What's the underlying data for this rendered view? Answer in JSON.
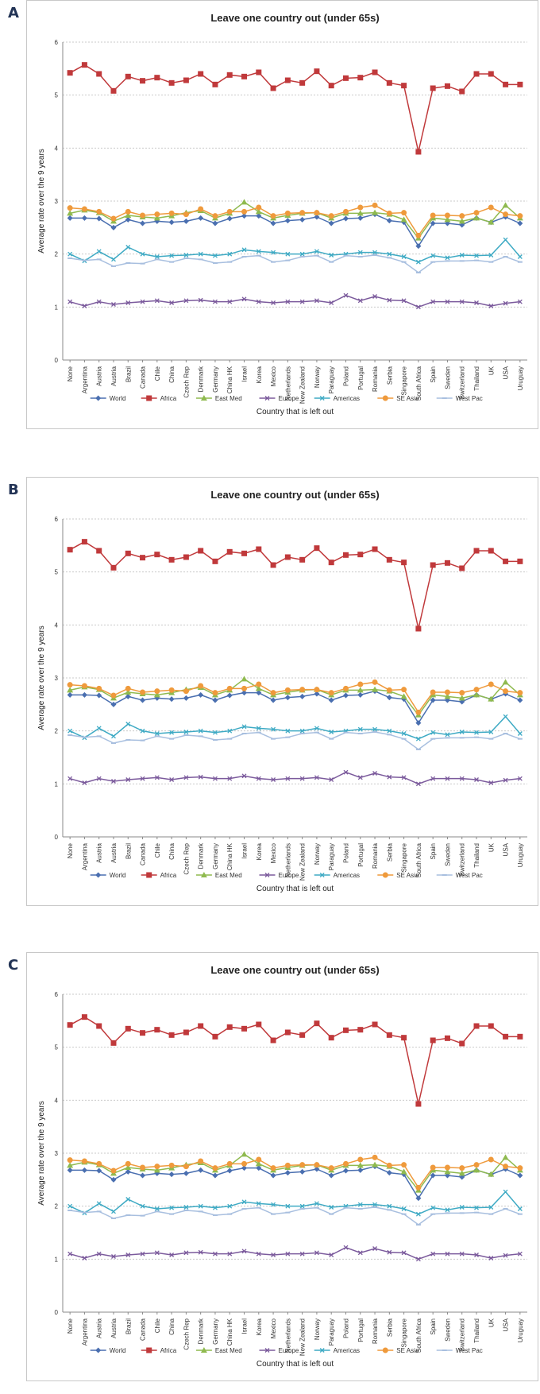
{
  "panels": [
    {
      "letter": "A"
    },
    {
      "letter": "B"
    },
    {
      "letter": "C"
    }
  ],
  "chart_data": {
    "type": "line",
    "title": "Leave one country out (under 65s)",
    "xlabel": "Country that is left out",
    "ylabel": "Average rate over the 9 years",
    "ylim": [
      0,
      6
    ],
    "yticks": [
      "0",
      "1",
      "2",
      "3",
      "4",
      "5",
      "6"
    ],
    "grid": true,
    "legend_position": "bottom",
    "categories": [
      "None",
      "Argentina",
      "Austria",
      "Austria",
      "Brazil",
      "Canada",
      "Chile",
      "China",
      "Czech Rep",
      "Denmark",
      "Germany",
      "China HK",
      "Israel",
      "Korea",
      "Mexico",
      "Netherlands",
      "New Zealand",
      "Norway",
      "Paraguay",
      "Poland",
      "Portugal",
      "Romania",
      "Serbia",
      "Singapore",
      "South Africa",
      "Spain",
      "Sweden",
      "Switzerland",
      "Thailand",
      "UK",
      "USA",
      "Uruguay"
    ],
    "series": [
      {
        "name": "World",
        "color": "#4a6fb0",
        "marker": "diamond",
        "values": [
          2.68,
          2.68,
          2.67,
          2.5,
          2.65,
          2.58,
          2.62,
          2.6,
          2.62,
          2.68,
          2.58,
          2.67,
          2.72,
          2.72,
          2.58,
          2.63,
          2.65,
          2.7,
          2.58,
          2.67,
          2.68,
          2.75,
          2.63,
          2.6,
          2.15,
          2.58,
          2.58,
          2.55,
          2.68,
          2.6,
          2.7,
          2.58
        ]
      },
      {
        "name": "Africa",
        "color": "#c0393b",
        "marker": "square",
        "values": [
          5.42,
          5.57,
          5.4,
          5.08,
          5.35,
          5.27,
          5.33,
          5.23,
          5.28,
          5.4,
          5.2,
          5.38,
          5.35,
          5.43,
          5.13,
          5.28,
          5.23,
          5.45,
          5.18,
          5.32,
          5.33,
          5.43,
          5.23,
          5.18,
          3.93,
          5.13,
          5.17,
          5.07,
          5.4,
          5.4,
          5.2,
          5.2
        ]
      },
      {
        "name": "East Med",
        "color": "#8fba4f",
        "marker": "triangle",
        "values": [
          2.77,
          2.83,
          2.78,
          2.62,
          2.73,
          2.7,
          2.68,
          2.72,
          2.78,
          2.82,
          2.68,
          2.77,
          2.98,
          2.8,
          2.68,
          2.73,
          2.77,
          2.78,
          2.68,
          2.77,
          2.77,
          2.78,
          2.75,
          2.65,
          2.3,
          2.68,
          2.65,
          2.62,
          2.68,
          2.6,
          2.92,
          2.68
        ]
      },
      {
        "name": "Europe",
        "color": "#7b5a9c",
        "marker": "x",
        "values": [
          1.1,
          1.02,
          1.1,
          1.05,
          1.08,
          1.1,
          1.12,
          1.08,
          1.12,
          1.13,
          1.1,
          1.1,
          1.15,
          1.1,
          1.08,
          1.1,
          1.1,
          1.12,
          1.08,
          1.22,
          1.12,
          1.2,
          1.13,
          1.12,
          1.0,
          1.1,
          1.1,
          1.1,
          1.08,
          1.02,
          1.07,
          1.1
        ]
      },
      {
        "name": "Americas",
        "color": "#3eaac4",
        "marker": "x",
        "values": [
          2.0,
          1.87,
          2.05,
          1.9,
          2.13,
          2.0,
          1.95,
          1.97,
          1.98,
          2.0,
          1.97,
          2.0,
          2.08,
          2.05,
          2.03,
          2.0,
          2.0,
          2.05,
          1.98,
          2.0,
          2.03,
          2.03,
          2.0,
          1.95,
          1.85,
          1.97,
          1.93,
          1.98,
          1.97,
          1.98,
          2.27,
          1.95
        ]
      },
      {
        "name": "SE Asia",
        "color": "#ef9a3c",
        "marker": "circle",
        "values": [
          2.87,
          2.85,
          2.8,
          2.67,
          2.8,
          2.73,
          2.75,
          2.77,
          2.75,
          2.85,
          2.72,
          2.8,
          2.8,
          2.88,
          2.72,
          2.77,
          2.78,
          2.78,
          2.72,
          2.8,
          2.88,
          2.92,
          2.77,
          2.78,
          2.35,
          2.73,
          2.73,
          2.72,
          2.78,
          2.88,
          2.75,
          2.72
        ]
      },
      {
        "name": "West Pac",
        "color": "#a8bfdf",
        "marker": "dash",
        "values": [
          1.92,
          1.88,
          1.9,
          1.77,
          1.83,
          1.82,
          1.9,
          1.85,
          1.92,
          1.9,
          1.83,
          1.85,
          1.95,
          1.97,
          1.85,
          1.88,
          1.95,
          1.97,
          1.85,
          1.97,
          1.95,
          1.98,
          1.93,
          1.85,
          1.65,
          1.85,
          1.87,
          1.87,
          1.88,
          1.85,
          1.95,
          1.85
        ]
      }
    ]
  }
}
